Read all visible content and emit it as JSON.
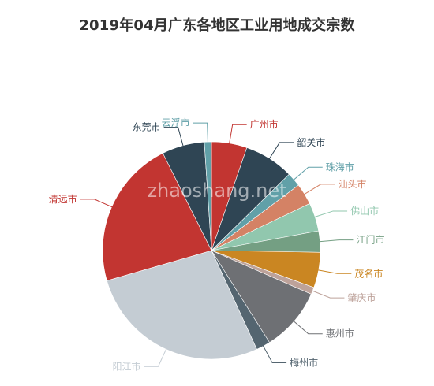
{
  "watermark": "zhaoshang.net",
  "chart_data": {
    "type": "pie",
    "title": "2019年04月广东各地区工业用地成交宗数",
    "slices": [
      {
        "label": "广州市",
        "value": 5,
        "color": "#c23531"
      },
      {
        "label": "韶关市",
        "value": 7,
        "color": "#2f4554"
      },
      {
        "label": "珠海市",
        "value": 2,
        "color": "#61a0a8"
      },
      {
        "label": "汕头市",
        "value": 3,
        "color": "#d48265"
      },
      {
        "label": "佛山市",
        "value": 4,
        "color": "#91c7ae"
      },
      {
        "label": "江门市",
        "value": 3,
        "color": "#749f83"
      },
      {
        "label": "茂名市",
        "value": 5,
        "color": "#ca8622"
      },
      {
        "label": "肇庆市",
        "value": 1,
        "color": "#bda29a"
      },
      {
        "label": "惠州市",
        "value": 9,
        "color": "#6e7074"
      },
      {
        "label": "梅州市",
        "value": 2,
        "color": "#546570"
      },
      {
        "label": "阳江市",
        "value": 26,
        "color": "#c4ccd3"
      },
      {
        "label": "清远市",
        "value": 21,
        "color": "#c23531"
      },
      {
        "label": "东莞市",
        "value": 6,
        "color": "#2f4554"
      },
      {
        "label": "云浮市",
        "value": 1,
        "color": "#61a0a8"
      }
    ]
  }
}
